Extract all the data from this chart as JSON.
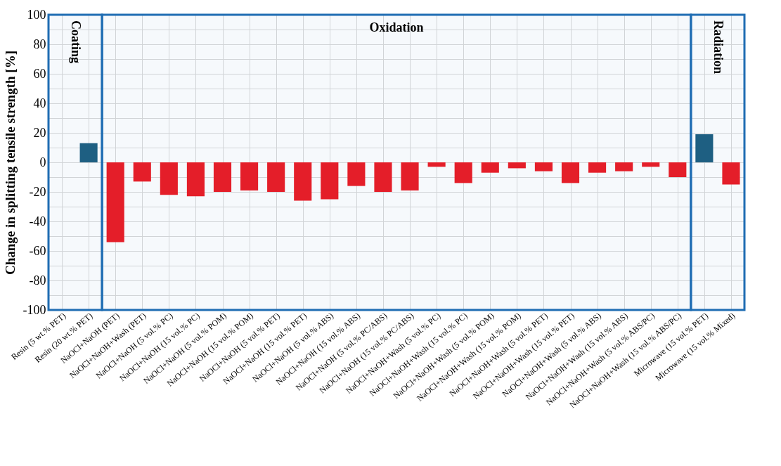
{
  "chart_data": {
    "type": "bar",
    "ylabel": "Change in splitting tensile strength [%]",
    "categories": [
      "Resin (5 wt.% PET)",
      "Resin (20 wt.% PET)",
      "NaOCl+NaOH (PET)",
      "NaOCl+NaOH+Wash (PET)",
      "NaOCl+NaOH (5 vol.% PC)",
      "NaOCl+NaOH (15 vol.% PC)",
      "NaOCl+NaOH (5 vol.% POM)",
      "NaOCl+NaOH (15 vol.% POM)",
      "NaOCl+NaOH (5 vol.% PET)",
      "NaOCl+NaOH (15 vol.% PET)",
      "NaOCl+NaOH (5 vol.% ABS)",
      "NaOCl+NaOH (15 vol.% ABS)",
      "NaOCl+NaOH (5 vol.% PC/ABS)",
      "NaOCl+NaOH (15 vol.% PC/ABS)",
      "NaOCl+NaOH+Wash (5 vol.% PC)",
      "NaOCl+NaOH+Wash (15 vol.% PC)",
      "NaOCl+NaOH+Wash (5 vol.% POM)",
      "NaOCl+NaOH+Wash (15 vol.% POM)",
      "NaOCl+NaOH+Wash (5 vol.% PET)",
      "NaOCl+NaOH+Wash (15 vol.% PET)",
      "NaOCl+NaOH+Wash (5 vol.% ABS)",
      "NaOCl+NaOH+Wash (15 vol.% ABS)",
      "NaOCl+NaOH+Wash (5 vol.% ABS/PC)",
      "NaOCl+NaOH+Wash (15 vol.% ABS/PC)",
      "Microwave (15 vol.% PET)",
      "Microwave (15 vol.% Mixed)"
    ],
    "values": [
      null,
      13,
      -54,
      -13,
      -22,
      -23,
      -20,
      -19,
      -20,
      -26,
      -25,
      -16,
      -20,
      -19,
      -3,
      -14,
      -7,
      -4,
      -6,
      -14,
      -7,
      -6,
      -3,
      -10,
      19,
      -15
    ],
    "colors": [
      null,
      "#1f5f80",
      "#ed1c24",
      "#ed1c24",
      "#ed1c24",
      "#ed1c24",
      "#ed1c24",
      "#ed1c24",
      "#ed1c24",
      "#ed1c24",
      "#ed1c24",
      "#ed1c24",
      "#ed1c24",
      "#ed1c24",
      "#ed1c24",
      "#ed1c24",
      "#ed1c24",
      "#ed1c24",
      "#ed1c24",
      "#ed1c24",
      "#ed1c24",
      "#ed1c24",
      "#ed1c24",
      "#ed1c24",
      "#1f5f80",
      "#ed1c24"
    ],
    "ylim": [
      -100,
      100
    ],
    "yticks": [
      -100,
      {
        "value": -90,
        "label": null
      },
      -80,
      {
        "value": -70,
        "label": null
      },
      -60,
      {
        "value": -50,
        "label": null
      },
      -40,
      {
        "value": -30,
        "label": null
      },
      -20,
      {
        "value": -10,
        "label": null
      },
      0,
      {
        "value": 10,
        "label": null
      },
      20,
      {
        "value": 30,
        "label": null
      },
      40,
      {
        "value": 50,
        "label": null
      },
      60,
      {
        "value": 70,
        "label": null
      },
      80,
      {
        "value": 90,
        "label": null
      },
      100
    ],
    "bands": [
      {
        "axis": "x",
        "from": "Resin (5 wt.% PET)",
        "to": "Resin (20 wt.% PET)",
        "label": "Coating",
        "color": "#1f6db3"
      },
      {
        "axis": "x",
        "from": "NaOCl+NaOH (PET)",
        "to": "NaOCl+NaOH+Wash (15 vol.% ABS/PC)",
        "label": "Oxidation",
        "color": "#1f6db3"
      },
      {
        "axis": "x",
        "from": "Microwave (15 vol.% PET)",
        "to": "Microwave (15 vol.% Mixed)",
        "label": "Radiation",
        "color": "#1f6db3"
      }
    ],
    "grid": true
  }
}
